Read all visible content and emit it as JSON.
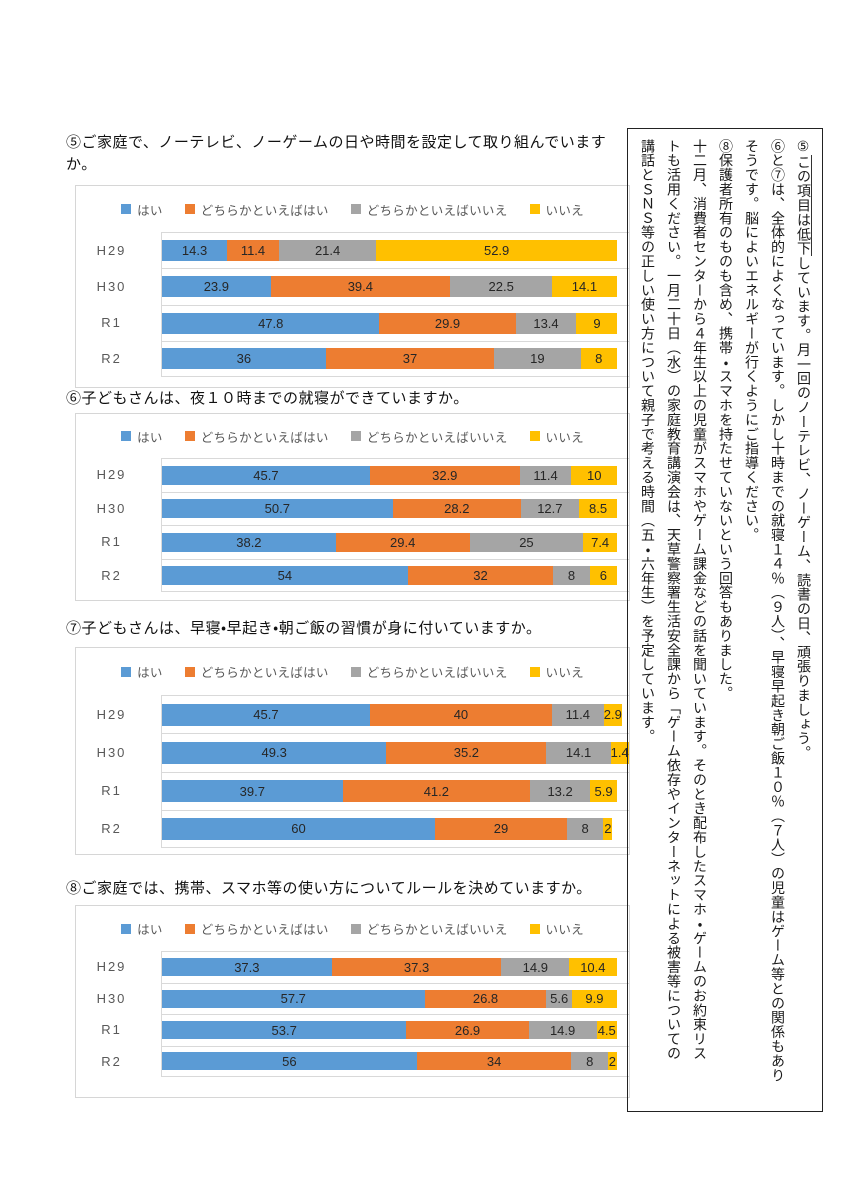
{
  "page": {
    "background": "#ffffff"
  },
  "legend_labels": [
    "はい",
    "どちらかといえばはい",
    "どちらかといえばいいえ",
    "いいえ"
  ],
  "series_colors": {
    "yes": "#5B9BD5",
    "rather_yes": "#ED7D31",
    "rather_no": "#A5A5A5",
    "no": "#FFC000"
  },
  "chart_data": [
    {
      "type": "bar",
      "orientation": "horizontal-stacked",
      "title": "⑤ご家庭で、ノーテレビ、ノーゲームの日や時間を設定して取り組んでいますか。",
      "categories": [
        "H29",
        "H30",
        "R1",
        "R2"
      ],
      "series": [
        {
          "name": "はい",
          "color": "#5B9BD5",
          "values": [
            14.3,
            23.9,
            47.8,
            36
          ]
        },
        {
          "name": "どちらかといえばはい",
          "color": "#ED7D31",
          "values": [
            11.4,
            39.4,
            29.9,
            37
          ]
        },
        {
          "name": "どちらかといえばいいえ",
          "color": "#A5A5A5",
          "values": [
            21.4,
            22.5,
            13.4,
            19
          ]
        },
        {
          "name": "いいえ",
          "color": "#FFC000",
          "values": [
            52.9,
            14.1,
            9,
            8
          ]
        }
      ],
      "xlim": [
        0,
        100
      ],
      "legend_position": "top",
      "grid": true
    },
    {
      "type": "bar",
      "orientation": "horizontal-stacked",
      "title": "⑥子どもさんは、夜１０時までの就寝ができていますか。",
      "categories": [
        "H29",
        "H30",
        "R1",
        "R2"
      ],
      "series": [
        {
          "name": "はい",
          "color": "#5B9BD5",
          "values": [
            45.7,
            50.7,
            38.2,
            54
          ]
        },
        {
          "name": "どちらかといえばはい",
          "color": "#ED7D31",
          "values": [
            32.9,
            28.2,
            29.4,
            32
          ]
        },
        {
          "name": "どちらかといえばいいえ",
          "color": "#A5A5A5",
          "values": [
            11.4,
            12.7,
            25,
            8
          ]
        },
        {
          "name": "いいえ",
          "color": "#FFC000",
          "values": [
            10,
            8.5,
            7.4,
            6
          ]
        }
      ],
      "xlim": [
        0,
        100
      ],
      "legend_position": "top",
      "grid": true
    },
    {
      "type": "bar",
      "orientation": "horizontal-stacked",
      "title": "⑦子どもさんは、早寝・早起き・朝ご飯の習慣が身に付いていますか。",
      "categories": [
        "H29",
        "H30",
        "R1",
        "R2"
      ],
      "series": [
        {
          "name": "はい",
          "color": "#5B9BD5",
          "values": [
            45.7,
            49.3,
            39.7,
            60
          ]
        },
        {
          "name": "どちらかといえばはい",
          "color": "#ED7D31",
          "values": [
            40,
            35.2,
            41.2,
            29
          ]
        },
        {
          "name": "どちらかといえばいいえ",
          "color": "#A5A5A5",
          "values": [
            11.4,
            14.1,
            13.2,
            8
          ]
        },
        {
          "name": "いいえ",
          "color": "#FFC000",
          "values": [
            2.9,
            1.4,
            5.9,
            2
          ]
        }
      ],
      "xlim": [
        0,
        100
      ],
      "legend_position": "top",
      "grid": true
    },
    {
      "type": "bar",
      "orientation": "horizontal-stacked",
      "title": "⑧ご家庭では、携帯、スマホ等の使い方についてルールを決めていますか。",
      "categories": [
        "H29",
        "H30",
        "R1",
        "R2"
      ],
      "series": [
        {
          "name": "はい",
          "color": "#5B9BD5",
          "values": [
            37.3,
            57.7,
            53.7,
            56
          ]
        },
        {
          "name": "どちらかといえばはい",
          "color": "#ED7D31",
          "values": [
            37.3,
            26.8,
            26.9,
            34
          ]
        },
        {
          "name": "どちらかといえばいいえ",
          "color": "#A5A5A5",
          "values": [
            14.9,
            5.6,
            14.9,
            8
          ]
        },
        {
          "name": "いいえ",
          "color": "#FFC000",
          "values": [
            10.4,
            9.9,
            4.5,
            2
          ]
        }
      ],
      "xlim": [
        0,
        100
      ],
      "legend_position": "top",
      "grid": true
    }
  ],
  "side_note": {
    "columns": [
      {
        "text": "⑤この項目は低下しています。月一回のノーテレビ、ノーゲーム、読書の日、頑張りましょう。",
        "emphasis": "この項目は低下"
      },
      {
        "text": "⑥と⑦は、全体的によくなっています。しかし十時までの就寝１４％（９人）、早寝早起き朝ご飯１０％（７人）の児童はゲーム等との関係もあり"
      },
      {
        "text": "そうです。脳によいエネルギーが行くようにご指導ください。"
      },
      {
        "text": "⑧保護者所有のものも含め、携帯・スマホを持たせていないという回答もありました。"
      },
      {
        "text": "十二月、消費者センターから４年生以上の児童がスマホやゲーム課金などの話を聞いています。そのとき配布したスマホ・ゲームのお約束リス"
      },
      {
        "text": "トも活用ください。一月二十日（水）の家庭教育講演会は、天草警察署生活安全課から「ゲーム依存やインターネットによる被害等についての"
      },
      {
        "text": "講話とＳＮＳ等の正しい使い方について親子で考える時間（五・六年生）を予定しています。"
      }
    ]
  }
}
